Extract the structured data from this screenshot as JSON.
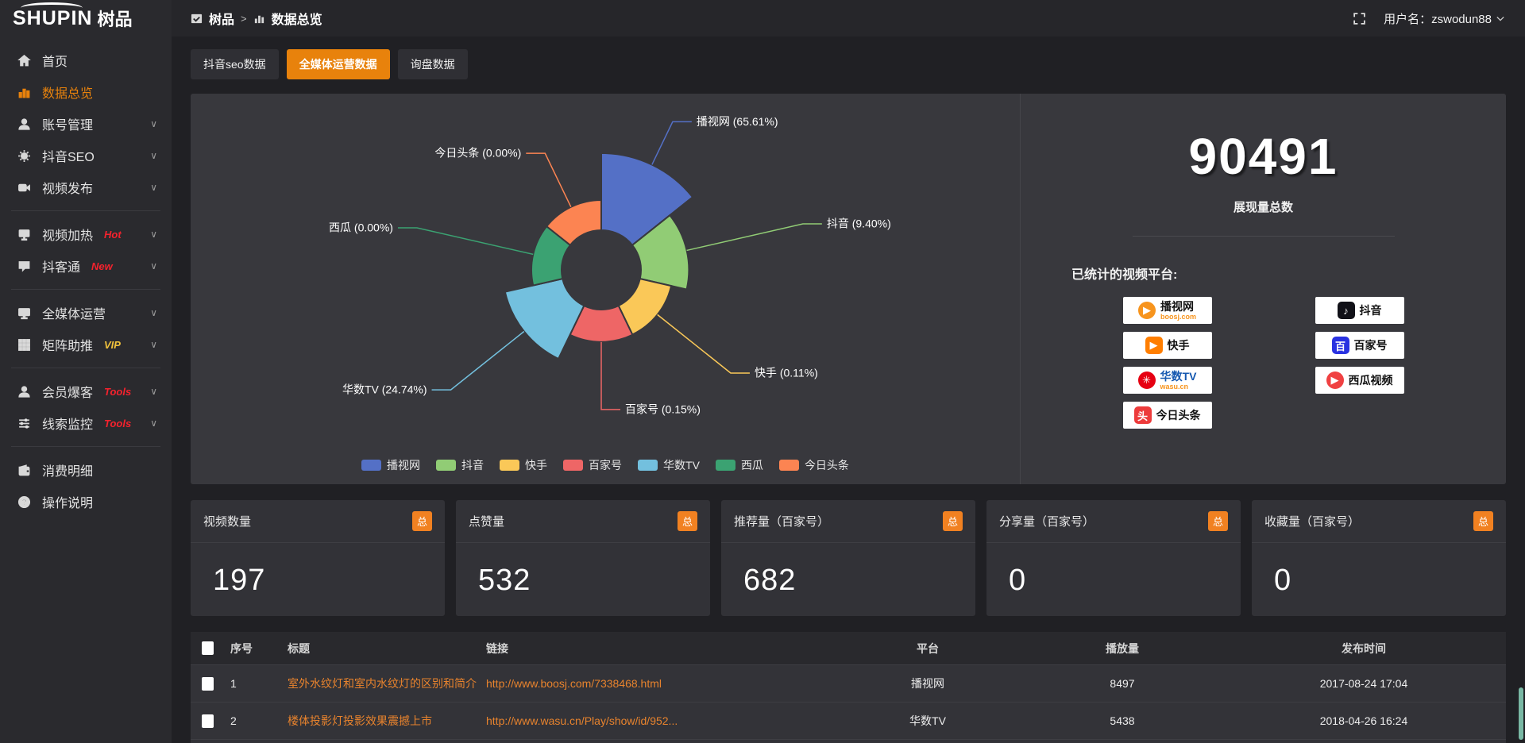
{
  "app": {
    "logo_en": "SHUPIN",
    "logo_cn": "树品"
  },
  "colors": {
    "accent": "#e8820c",
    "badge_orange": "#f18121",
    "link_orange": "#e8832d",
    "hot_red": "#f5222d",
    "vip_gold": "#f0c23c"
  },
  "header": {
    "breadcrumb_home": "树品",
    "breadcrumb_sep": ">",
    "breadcrumb_current": "数据总览",
    "username": "用户名：zswodun88"
  },
  "tabs": {
    "items": [
      {
        "label": "抖音seo数据"
      },
      {
        "label": "全媒体运营数据"
      },
      {
        "label": "询盘数据"
      }
    ],
    "active_index": 1
  },
  "sidebar": {
    "items": [
      {
        "label": "首页"
      },
      {
        "label": "数据总览",
        "active": true
      },
      {
        "label": "账号管理",
        "chevron": "∨"
      },
      {
        "label": "抖音SEO",
        "chevron": "∨"
      },
      {
        "label": "视频发布",
        "chevron": "∨"
      },
      {
        "label": "视频加热",
        "badge": "Hot",
        "badge_color": "#f5222d",
        "chevron": "∨"
      },
      {
        "label": "抖客通",
        "badge": "New",
        "badge_color": "#f5222d",
        "chevron": "∨"
      },
      {
        "label": "全媒体运营",
        "chevron": "∨"
      },
      {
        "label": "矩阵助推",
        "badge": "VIP",
        "badge_color": "#f0c23c",
        "chevron": "∨"
      },
      {
        "label": "会员爆客",
        "badge": "Tools",
        "badge_color": "#f5222d",
        "chevron": "∨"
      },
      {
        "label": "线索监控",
        "badge": "Tools",
        "badge_color": "#f5222d",
        "chevron": "∨"
      },
      {
        "label": "消费明细"
      },
      {
        "label": "操作说明"
      }
    ]
  },
  "chart_data": {
    "type": "pie",
    "subtype": "nightingale-rose",
    "title": "",
    "legend_position": "bottom",
    "donut": true,
    "series": [
      {
        "name": "播视网",
        "value": 65.61,
        "color": "#5470c6"
      },
      {
        "name": "抖音",
        "value": 9.4,
        "color": "#91cc75"
      },
      {
        "name": "快手",
        "value": 0.11,
        "color": "#fac858"
      },
      {
        "name": "百家号",
        "value": 0.15,
        "color": "#ee6666"
      },
      {
        "name": "华数TV",
        "value": 24.74,
        "color": "#73c0de"
      },
      {
        "name": "西瓜",
        "value": 0.0,
        "color": "#3ba272"
      },
      {
        "name": "今日头条",
        "value": 0.0,
        "color": "#fc8452"
      }
    ],
    "labels": [
      "播视网 (65.61%)",
      "抖音 (9.40%)",
      "快手 (0.11%)",
      "百家号 (0.15%)",
      "华数TV (24.74%)",
      "西瓜 (0.00%)",
      "今日头条 (0.00%)"
    ],
    "legend": [
      "播视网",
      "抖音",
      "快手",
      "百家号",
      "华数TV",
      "西瓜",
      "今日头条"
    ]
  },
  "right_panel": {
    "total": "90491",
    "total_caption": "展现量总数",
    "platforms_title": "已统计的视频平台:",
    "platforms": [
      {
        "name": "播视网",
        "sub": "boosj.com",
        "glyph": "▶",
        "color": "#f7941d",
        "shape": "round",
        "name_color": "#111111"
      },
      {
        "name": "抖音",
        "sub": "",
        "glyph": "♪",
        "color": "#111118",
        "shape": "square",
        "name_color": "#111111"
      },
      {
        "name": "快手",
        "sub": "",
        "glyph": "▶",
        "color": "#ff7e00",
        "shape": "square",
        "name_color": "#111111"
      },
      {
        "name": "百家号",
        "sub": "",
        "glyph": "百",
        "color": "#2932e1",
        "shape": "square",
        "name_color": "#111111"
      },
      {
        "name": "华数TV",
        "sub": "wasu.cn",
        "glyph": "✳",
        "color": "#e60012",
        "shape": "round",
        "name_color": "#1558b0"
      },
      {
        "name": "西瓜视频",
        "sub": "",
        "glyph": "▶",
        "color": "#f04142",
        "shape": "round",
        "name_color": "#111111"
      },
      {
        "name": "今日头条",
        "sub": "",
        "glyph": "头",
        "color": "#ed3b3b",
        "shape": "square",
        "name_color": "#111111"
      }
    ]
  },
  "stat_cards": [
    {
      "title": "视频数量",
      "badge": "总",
      "value": "197"
    },
    {
      "title": "点赞量",
      "badge": "总",
      "value": "532"
    },
    {
      "title": "推荐量（百家号）",
      "badge": "总",
      "value": "682"
    },
    {
      "title": "分享量（百家号）",
      "badge": "总",
      "value": "0"
    },
    {
      "title": "收藏量（百家号）",
      "badge": "总",
      "value": "0"
    }
  ],
  "table": {
    "headers": [
      "序号",
      "标题",
      "链接",
      "平台",
      "播放量",
      "发布时间"
    ],
    "rows": [
      {
        "no": "1",
        "title": "室外水纹灯和室内水纹灯的区别和简介",
        "link": "http://www.boosj.com/7338468.html",
        "platform": "播视网",
        "plays": "8497",
        "time": "2017-08-24 17:04"
      },
      {
        "no": "2",
        "title": "楼体投影灯投影效果震撼上市",
        "link": "http://www.wasu.cn/Play/show/id/952...",
        "platform": "华数TV",
        "plays": "5438",
        "time": "2018-04-26 16:24"
      }
    ]
  }
}
